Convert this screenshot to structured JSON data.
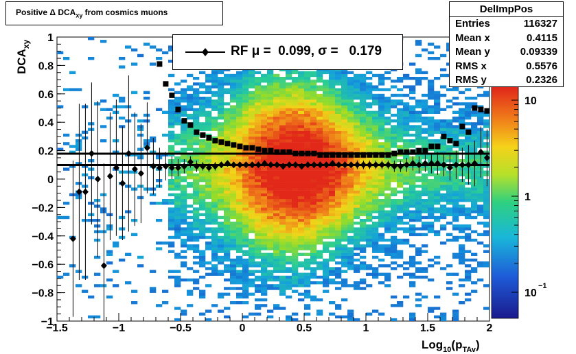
{
  "title": "Positive Δ DCA",
  "title_sub": "xy",
  "title_suffix": " from cosmics muons",
  "stats": {
    "name": "DelImpPos",
    "rows": [
      {
        "label": "Entries",
        "value": "116327"
      },
      {
        "label": "Mean x",
        "value": "0.4115"
      },
      {
        "label": "Mean y",
        "value": "0.09339"
      },
      {
        "label": "RMS x",
        "value": "0.5576"
      },
      {
        "label": "RMS y",
        "value": "0.2326"
      }
    ]
  },
  "legend": {
    "text": "RF μ =  0.099, σ =   0.179"
  },
  "colors": {
    "profile": "#000000",
    "fit_line": "#000000"
  },
  "chart_data": {
    "type": "heatmap",
    "xlabel": "Log",
    "xlabel_sub": "10",
    "xlabel_tail": "(p",
    "xlabel_sub2": "TAv",
    "xlabel_end": ")",
    "ylabel": "DCA",
    "ylabel_sub": "xy",
    "xlim": [
      -1.5,
      2
    ],
    "ylim": [
      -1,
      1
    ],
    "x_ticks": [
      -1.5,
      -1,
      -0.5,
      0,
      0.5,
      1,
      1.5,
      2
    ],
    "x_tick_labels": [
      "−1.5",
      "−1",
      "−0.5",
      "0",
      "0.5",
      "1",
      "1.5",
      "2"
    ],
    "y_ticks": [
      -1,
      -0.8,
      -0.6,
      -0.4,
      -0.2,
      0,
      0.2,
      0.4,
      0.6,
      0.8,
      1
    ],
    "y_tick_labels": [
      "−1",
      "−0.8",
      "−0.6",
      "−0.4",
      "−0.2",
      "0",
      "0.2",
      "0.4",
      "0.6",
      "0.8",
      "1"
    ],
    "z_scale": "log",
    "colorbar_tick_labels": [
      "10",
      "1",
      "10"
    ],
    "colorbar_exponent": "−1",
    "fit_lines": [
      {
        "name": "mean",
        "y": 0.099
      },
      {
        "name": "sigma",
        "y": 0.179
      }
    ],
    "mean_profile": {
      "x": [
        -1.37,
        -1.32,
        -1.27,
        -1.22,
        -1.17,
        -1.12,
        -1.07,
        -1.02,
        -0.97,
        -0.92,
        -0.87,
        -0.82,
        -0.77,
        -0.72,
        -0.67,
        -0.62,
        -0.57,
        -0.52,
        -0.47,
        -0.42,
        -0.37,
        -0.32,
        -0.27,
        -0.22,
        -0.17,
        -0.12,
        -0.07,
        -0.02,
        0.03,
        0.08,
        0.13,
        0.18,
        0.23,
        0.28,
        0.33,
        0.38,
        0.43,
        0.48,
        0.53,
        0.58,
        0.63,
        0.68,
        0.73,
        0.78,
        0.83,
        0.88,
        0.93,
        0.98,
        1.03,
        1.08,
        1.13,
        1.18,
        1.23,
        1.28,
        1.33,
        1.38,
        1.43,
        1.48,
        1.53,
        1.58,
        1.63,
        1.68,
        1.73,
        1.78,
        1.83,
        1.88,
        1.93,
        1.98
      ],
      "y": [
        -0.42,
        -0.09,
        -0.09,
        0.18,
        0.0,
        -0.61,
        0.02,
        0.08,
        -0.03,
        0.18,
        0.07,
        0.04,
        0.22,
        0.09,
        0.08,
        0.09,
        0.08,
        0.08,
        0.09,
        0.12,
        0.09,
        0.09,
        0.08,
        0.09,
        0.1,
        0.11,
        0.1,
        0.1,
        0.1,
        0.1,
        0.1,
        0.11,
        0.1,
        0.1,
        0.09,
        0.1,
        0.1,
        0.09,
        0.1,
        0.1,
        0.1,
        0.1,
        0.11,
        0.1,
        0.1,
        0.1,
        0.1,
        0.1,
        0.1,
        0.1,
        0.1,
        0.1,
        0.09,
        0.09,
        0.1,
        0.11,
        0.1,
        0.11,
        0.11,
        0.11,
        0.1,
        0.08,
        0.1,
        0.1,
        0.1,
        0.11,
        0.19,
        0.15
      ],
      "yerr": [
        0.55,
        0.62,
        0.62,
        0.5,
        0.55,
        0.72,
        0.45,
        0.48,
        0.4,
        0.55,
        0.4,
        0.35,
        0.32,
        0.2,
        0.14,
        0.1,
        0.08,
        0.06,
        0.05,
        0.04,
        0.04,
        0.03,
        0.03,
        0.03,
        0.02,
        0.02,
        0.02,
        0.02,
        0.02,
        0.02,
        0.02,
        0.02,
        0.02,
        0.02,
        0.02,
        0.02,
        0.02,
        0.02,
        0.02,
        0.02,
        0.02,
        0.02,
        0.02,
        0.02,
        0.02,
        0.02,
        0.03,
        0.03,
        0.03,
        0.03,
        0.03,
        0.03,
        0.04,
        0.04,
        0.05,
        0.05,
        0.06,
        0.06,
        0.07,
        0.08,
        0.08,
        0.09,
        0.1,
        0.12,
        0.14,
        0.16,
        0.18,
        0.2
      ]
    },
    "rms_profile": {
      "x": [
        -0.67,
        -0.62,
        -0.57,
        -0.52,
        -0.47,
        -0.42,
        -0.37,
        -0.32,
        -0.27,
        -0.22,
        -0.17,
        -0.12,
        -0.07,
        -0.02,
        0.03,
        0.08,
        0.13,
        0.18,
        0.23,
        0.28,
        0.33,
        0.38,
        0.43,
        0.48,
        0.53,
        0.58,
        0.63,
        0.68,
        0.73,
        0.78,
        0.83,
        0.88,
        0.93,
        0.98,
        1.03,
        1.08,
        1.13,
        1.18,
        1.23,
        1.28,
        1.33,
        1.38,
        1.43,
        1.48,
        1.53,
        1.58,
        1.63,
        1.68,
        1.73,
        1.78,
        1.83,
        1.88,
        1.93,
        1.98
      ],
      "y": [
        0.81,
        0.67,
        0.59,
        0.49,
        0.41,
        0.38,
        0.33,
        0.31,
        0.29,
        0.27,
        0.26,
        0.25,
        0.24,
        0.23,
        0.22,
        0.22,
        0.21,
        0.2,
        0.2,
        0.19,
        0.19,
        0.19,
        0.18,
        0.18,
        0.18,
        0.18,
        0.17,
        0.17,
        0.17,
        0.17,
        0.17,
        0.17,
        0.17,
        0.17,
        0.17,
        0.17,
        0.17,
        0.17,
        0.18,
        0.19,
        0.19,
        0.19,
        0.2,
        0.2,
        0.23,
        0.23,
        0.3,
        0.27,
        0.25,
        0.37,
        0.33,
        0.5,
        0.49,
        0.48
      ]
    }
  }
}
